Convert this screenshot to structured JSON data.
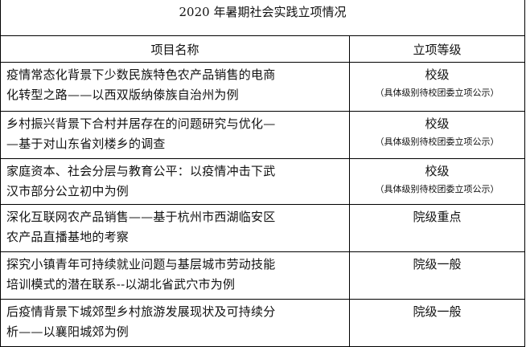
{
  "table": {
    "title": "2020 年暑期社会实践立项情况",
    "headers": {
      "name": "项目名称",
      "level": "立项等级"
    },
    "rows": [
      {
        "name": "疫情常态化背景下少数民族特色农产品销售的电商\n化转型之路——以西双版纳傣族自治州为例",
        "level": "校级",
        "note": "（具体级别待校团委立项公示）"
      },
      {
        "name": "乡村振兴背景下合村并居存在的问题研究与优化—\n—基于对山东省刘楼乡的调查",
        "level": "校级",
        "note": "（具体级别待校团委立项公示）"
      },
      {
        "name": "家庭资本、社会分层与教育公平：以疫情冲击下武\n汉市部分公立初中为例",
        "level": "校级",
        "note": "（具体级别待校团委立项公示）"
      },
      {
        "name": "深化互联网农产品销售——基于杭州市西湖临安区\n农产品直播基地的考察",
        "level": "院级重点",
        "note": ""
      },
      {
        "name": "探究小镇青年可持续就业问题与基层城市劳动技能\n培训模式的潜在联系--以湖北省武穴市为例",
        "level": "院级一般",
        "note": ""
      },
      {
        "name": "后疫情背景下城郊型乡村旅游发展现状及可持续分\n析——以襄阳城郊为例",
        "level": "院级一般",
        "note": ""
      }
    ]
  }
}
